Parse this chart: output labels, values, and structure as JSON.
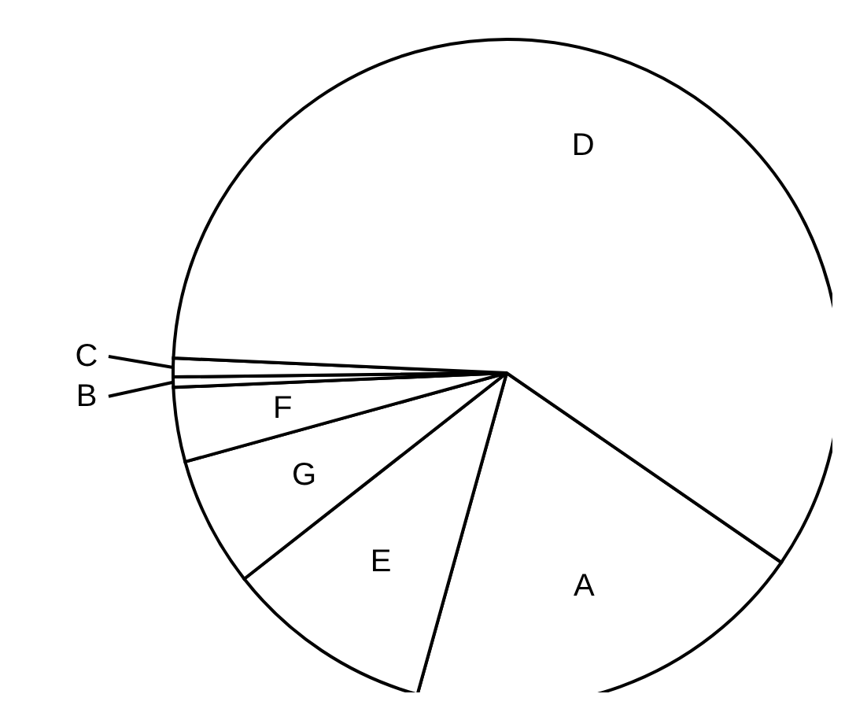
{
  "chart_data": {
    "type": "pie",
    "categories": [
      "A",
      "E",
      "G",
      "F",
      "B",
      "C",
      "D"
    ],
    "values": [
      19.7,
      10.1,
      6.3,
      3.6,
      0.5,
      0.9,
      58.9
    ],
    "colors": [
      "#ffffff",
      "#ffffff",
      "#ffffff",
      "#ffffff",
      "#ffffff",
      "#ffffff",
      "#ffffff"
    ],
    "legend": false
  }
}
